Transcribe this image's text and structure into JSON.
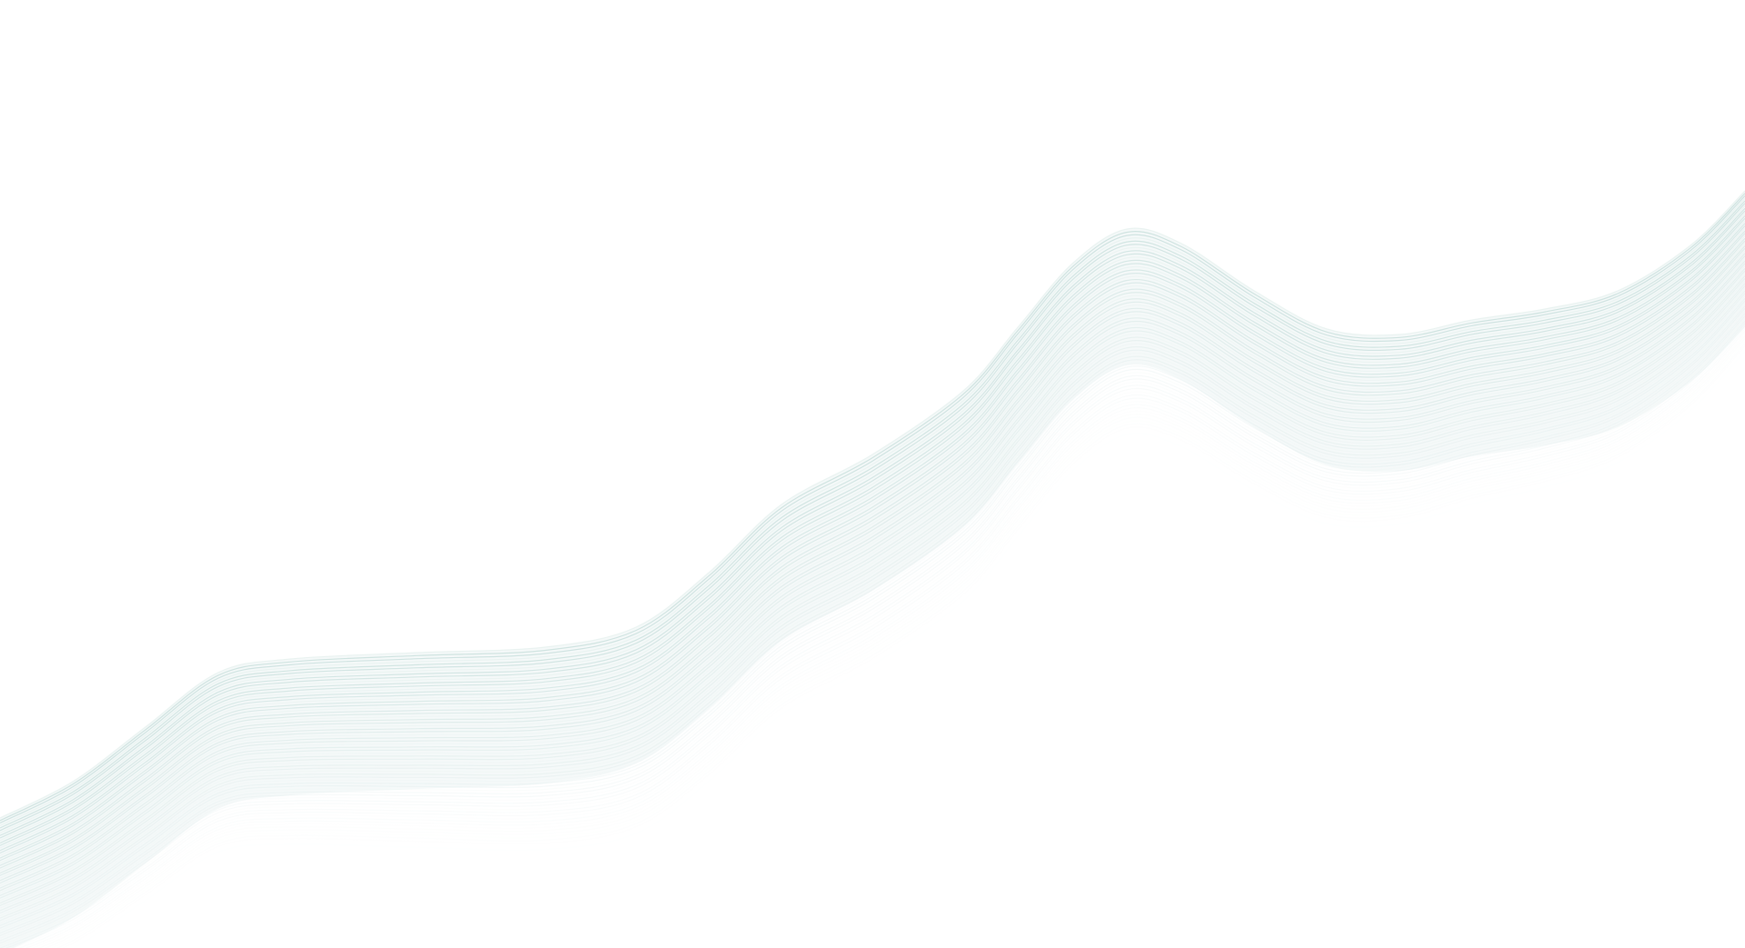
{
  "background": {
    "color": "#ffffff",
    "wave_color": "#c6dedb",
    "wave_highlight_color": "#e6f1ef",
    "description_icon": "abstract-wave-lines"
  }
}
